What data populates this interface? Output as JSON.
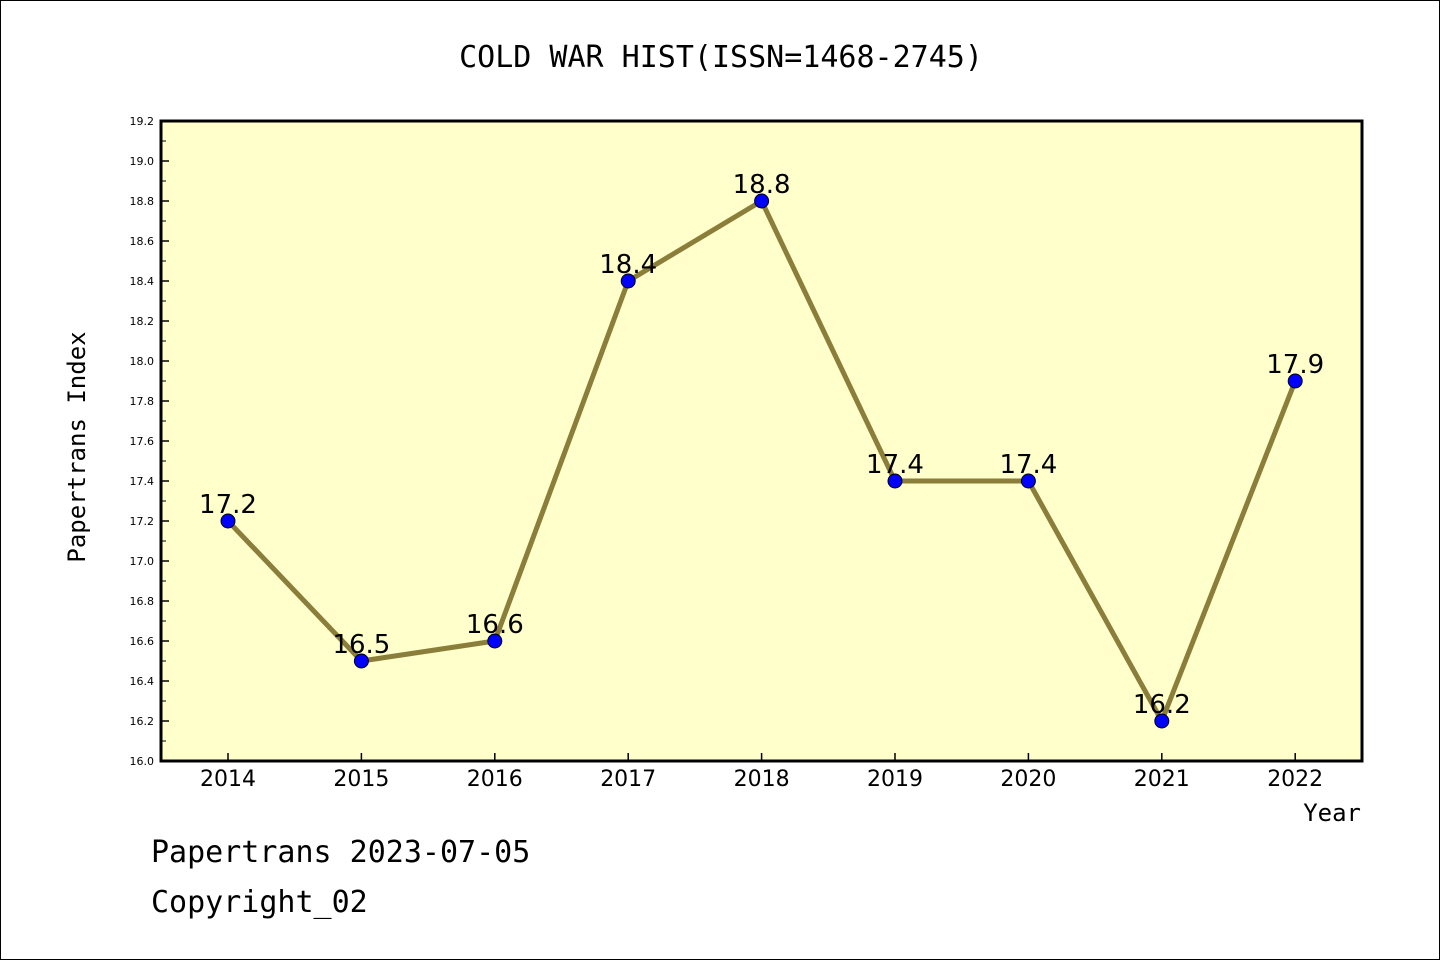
{
  "footer": {
    "line1": "Papertrans 2023-07-05",
    "line2": "Copyright_02"
  },
  "chart_data": {
    "type": "line",
    "title": "COLD WAR HIST(ISSN=1468-2745)",
    "xlabel": "Year",
    "ylabel": "Papertrans Index",
    "categories": [
      "2014",
      "2015",
      "2016",
      "2017",
      "2018",
      "2019",
      "2020",
      "2021",
      "2022"
    ],
    "series": [
      {
        "values": [
          17.2,
          16.5,
          16.6,
          18.4,
          18.8,
          17.4,
          17.4,
          16.2,
          17.9
        ],
        "data_labels": [
          "17.2",
          "16.5",
          "16.6",
          "18.4",
          "18.8",
          "17.4",
          "17.4",
          "16.2",
          "17.9"
        ]
      }
    ],
    "ylim": [
      16.0,
      19.2
    ],
    "yticks": [
      "16.0",
      "16.2",
      "16.4",
      "16.6",
      "16.8",
      "17.0",
      "17.2",
      "17.4",
      "17.6",
      "17.8",
      "18.0",
      "18.2",
      "18.4",
      "18.6",
      "18.8",
      "19.0",
      "19.2"
    ],
    "grid": false,
    "colors": {
      "plot_background": "#ffffcc",
      "line": "#8b7d3a",
      "marker": "#0000ff",
      "axes": "#000000"
    }
  }
}
